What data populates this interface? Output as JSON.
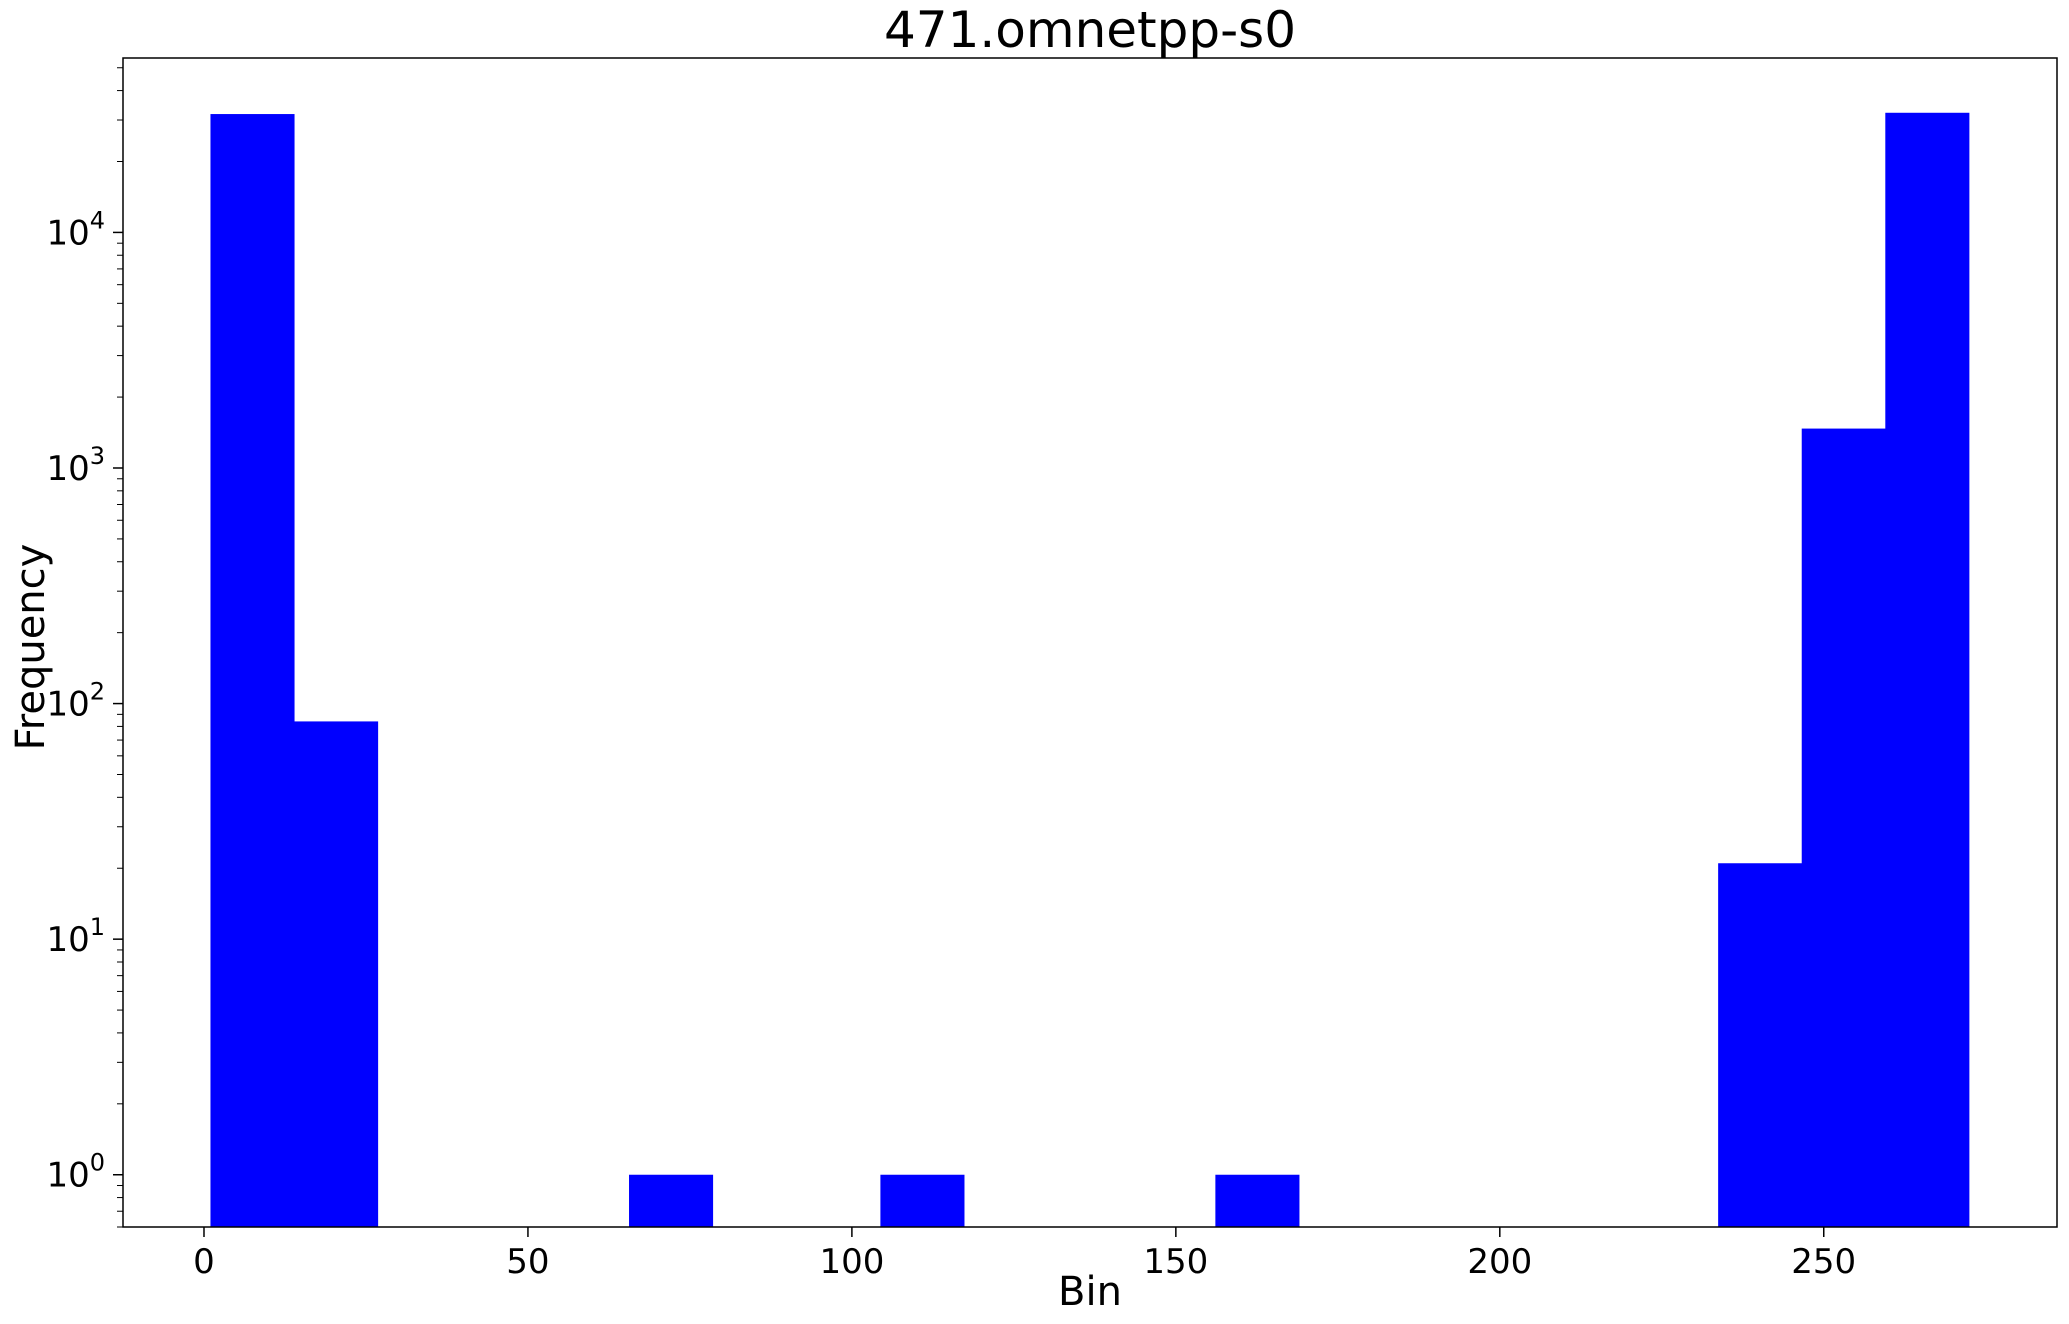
{
  "chart_data": {
    "type": "bar",
    "title": "471.omnetpp-s0",
    "xlabel": "Bin",
    "ylabel": "Frequency",
    "xlim": [
      -12.5,
      286
    ],
    "ylim": [
      0.6,
      55000
    ],
    "yscale": "log",
    "grid": false,
    "color": "#0000ff",
    "bins": [
      {
        "start": 1.0,
        "end": 13.9,
        "value": 31800
      },
      {
        "start": 13.9,
        "end": 26.8,
        "value": 84
      },
      {
        "start": 65.6,
        "end": 78.5,
        "value": 1
      },
      {
        "start": 104.4,
        "end": 117.3,
        "value": 1
      },
      {
        "start": 156.1,
        "end": 169.0,
        "value": 1
      },
      {
        "start": 233.7,
        "end": 246.6,
        "value": 21
      },
      {
        "start": 246.6,
        "end": 259.5,
        "value": 1470
      },
      {
        "start": 259.5,
        "end": 272.4,
        "value": 32200
      }
    ],
    "x_ticks": [
      {
        "value": 0,
        "label": "0"
      },
      {
        "value": 50,
        "label": "50"
      },
      {
        "value": 100,
        "label": "100"
      },
      {
        "value": 150,
        "label": "150"
      },
      {
        "value": 200,
        "label": "200"
      },
      {
        "value": 250,
        "label": "250"
      }
    ],
    "y_ticks": [
      {
        "value": 1,
        "base": "10",
        "exp": "0"
      },
      {
        "value": 10,
        "base": "10",
        "exp": "1"
      },
      {
        "value": 100,
        "base": "10",
        "exp": "2"
      },
      {
        "value": 1000,
        "base": "10",
        "exp": "3"
      },
      {
        "value": 10000,
        "base": "10",
        "exp": "4"
      }
    ]
  }
}
